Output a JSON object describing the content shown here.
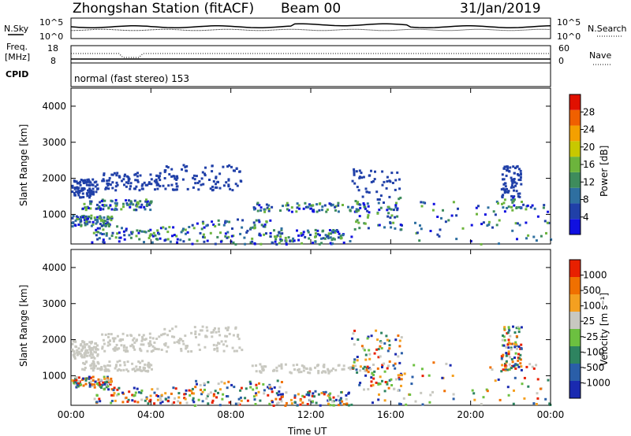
{
  "header": {
    "station": "Zhongshan Station (fitACF)",
    "beam": "Beam 00",
    "date": "31/Jan/2019"
  },
  "top_panels": {
    "nsky_label": "N.Sky",
    "nsky_ticks": [
      "10^5",
      "10^0"
    ],
    "nsearch_label": "N.Search",
    "nsearch_ticks": [
      "10^5",
      "10^0"
    ],
    "freq_label_1": "Freq.",
    "freq_label_2": "[MHz]",
    "freq_ticks": [
      "18",
      "8"
    ],
    "nave_label": "Nave",
    "nave_ticks": [
      "60",
      "0"
    ],
    "cpid_label": "CPID",
    "cpid_text": "normal (fast stereo) 153"
  },
  "chart_data": [
    {
      "type": "heatmap",
      "variable": "power",
      "ylabel": "Slant Range [km]",
      "ylim": [
        180,
        4500
      ],
      "yticks": [
        "4000",
        "3000",
        "2000",
        "1000"
      ],
      "xticks": [
        "00:00",
        "04:00",
        "08:00",
        "12:00",
        "16:00",
        "20:00",
        "00:00"
      ],
      "xlim_hours": [
        0,
        24
      ],
      "colorbar": {
        "label": "Power [dB]",
        "ticks": [
          "28",
          "24",
          "20",
          "16",
          "12",
          "8",
          "4"
        ],
        "colors": [
          "#1010e0",
          "#2040a8",
          "#2e6fa0",
          "#3e8c5c",
          "#6cb43c",
          "#c8c800",
          "#f4a000",
          "#f06000",
          "#e01000"
        ]
      }
    },
    {
      "type": "heatmap",
      "variable": "velocity",
      "ylabel": "Slant Range [km]",
      "ylim": [
        180,
        4500
      ],
      "yticks": [
        "4000",
        "3000",
        "2000",
        "1000"
      ],
      "xticks": [
        "00:00",
        "04:00",
        "08:00",
        "12:00",
        "16:00",
        "20:00",
        "00:00"
      ],
      "xlim_hours": [
        0,
        24
      ],
      "xlabel": "Time UT",
      "colorbar": {
        "label": "Velocity [m s⁻¹]",
        "ticks": [
          "1000",
          "500",
          "100",
          "25",
          "-25",
          "-100",
          "-500",
          "-1000"
        ],
        "colors": [
          "#1a2ab0",
          "#2a5ea8",
          "#2e8460",
          "#6cc040",
          "#c8c8c0",
          "#f4a020",
          "#f07000",
          "#e82000"
        ]
      }
    }
  ]
}
